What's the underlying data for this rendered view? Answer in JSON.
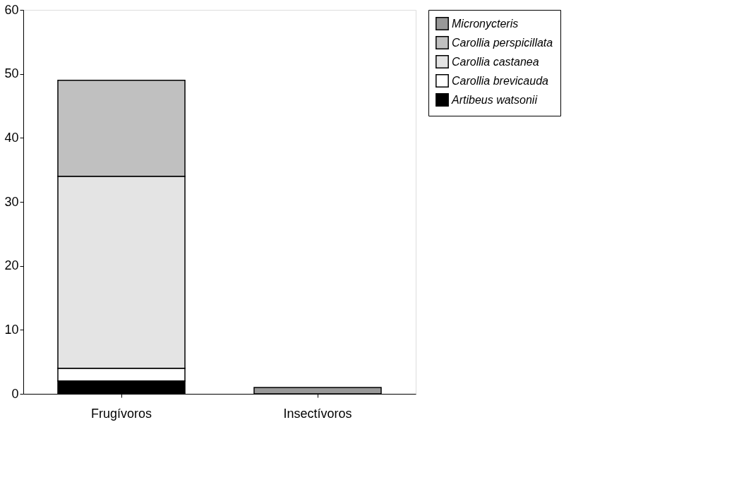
{
  "chart_data": {
    "type": "bar",
    "stacked": true,
    "categories": [
      "Frugívoros",
      "Insectívoros"
    ],
    "series": [
      {
        "name": "Artibeus watsonii",
        "color": "#000000",
        "values": [
          2,
          null
        ]
      },
      {
        "name": "Carollia brevicauda",
        "color": "#ffffff",
        "values": [
          2,
          null
        ]
      },
      {
        "name": "Carollia castanea",
        "color": "#e4e4e4",
        "values": [
          30,
          null
        ]
      },
      {
        "name": "Carollia perspicillata",
        "color": "#c0c0c0",
        "values": [
          15,
          null
        ]
      },
      {
        "name": "Micronycteris",
        "color": "#999999",
        "values": [
          null,
          1
        ]
      }
    ],
    "ylim": [
      0,
      60
    ],
    "yticks": [
      0,
      10,
      20,
      30,
      40,
      50,
      60
    ],
    "grid": false,
    "legend": "right"
  }
}
